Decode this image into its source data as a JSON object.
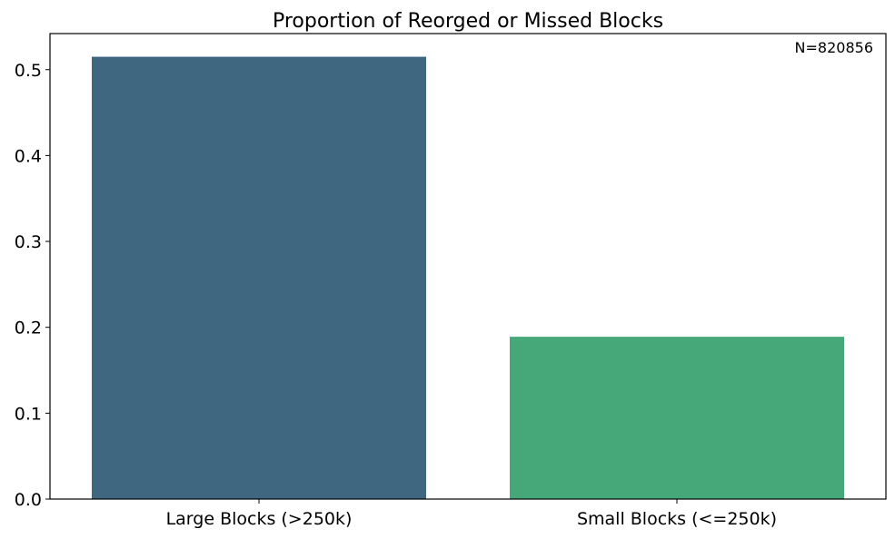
{
  "chart_data": {
    "type": "bar",
    "title": "Proportion of Reorged or Missed Blocks",
    "annotation": "N=820856",
    "categories": [
      "Large Blocks (>250k)",
      "Small Blocks (<=250k)"
    ],
    "values": [
      0.515,
      0.189
    ],
    "colors": [
      "#3f677f",
      "#46a778"
    ],
    "xlabel": "",
    "ylabel": "",
    "ylim": [
      0,
      0.542
    ],
    "yticks": [
      0.0,
      0.1,
      0.2,
      0.3,
      0.4,
      0.5
    ],
    "ytick_labels": [
      "0.0",
      "0.1",
      "0.2",
      "0.3",
      "0.4",
      "0.5"
    ],
    "grid": false,
    "legend": "none"
  }
}
